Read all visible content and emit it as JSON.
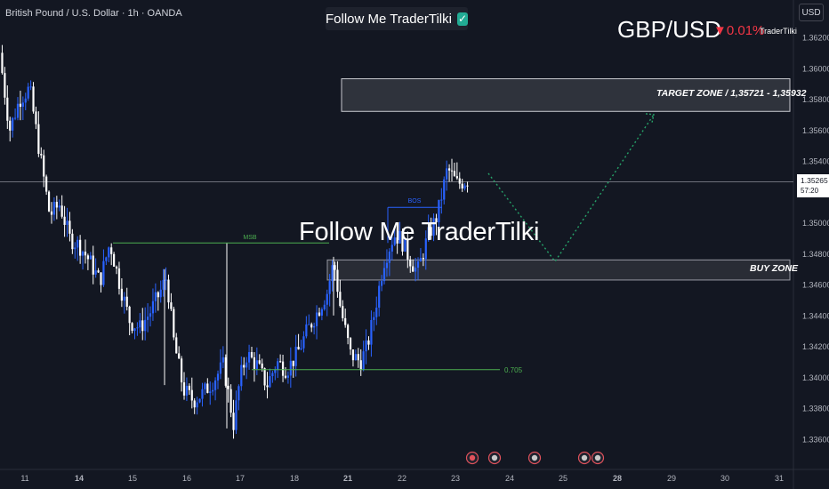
{
  "header": {
    "symbol_title": "British Pound / U.S. Dollar · 1h · OANDA",
    "banner_text": "Follow Me TraderTilki",
    "banner_check": "✓",
    "pair": "GBP/USD",
    "change": "▼0.01%",
    "brand": "TraderTilki",
    "currency": "USD"
  },
  "watermark": "Follow Me TraderTilki",
  "current_price": {
    "value": "1.35265",
    "countdown": "57:20"
  },
  "annotations": {
    "target_zone_label": "TARGET ZONE / 1,35721 - 1,35932",
    "buy_zone_label": "BUY ZONE",
    "msb": "MSB",
    "bos": "BOS",
    "fib": "0.705"
  },
  "colors": {
    "background": "#131722",
    "candle_up": "#2962ff",
    "candle_down": "#ffffff",
    "level_line": "#4caf50",
    "projection": "#26a269",
    "bos_line": "#2962ff"
  },
  "chart_data": {
    "type": "candlestick",
    "x_ticks": [
      "11",
      "14",
      "15",
      "16",
      "17",
      "18",
      "21",
      "22",
      "23",
      "24",
      "25",
      "28",
      "29",
      "30",
      "31"
    ],
    "y_ticks": [
      "1.36200",
      "1.36000",
      "1.35800",
      "1.35600",
      "1.35400",
      "1.35200",
      "1.35000",
      "1.34800",
      "1.34600",
      "1.34400",
      "1.34200",
      "1.34000",
      "1.33800",
      "1.33600"
    ],
    "y_range": [
      1.335,
      1.363
    ],
    "current_price": 1.35265,
    "zones": [
      {
        "label": "TARGET ZONE / 1,35721 - 1,35932",
        "low": 1.35721,
        "high": 1.35932
      },
      {
        "label": "BUY ZONE",
        "low": 1.3463,
        "high": 1.3476
      }
    ],
    "levels": [
      {
        "label": "MSB",
        "price": 1.3487
      },
      {
        "label": "BOS",
        "price": 1.351
      },
      {
        "label": "0.705",
        "price": 1.3405
      }
    ],
    "projection": [
      {
        "day": "23",
        "price": 1.3532
      },
      {
        "day": "25",
        "price": 1.3475
      },
      {
        "day": "28",
        "price": 1.357
      }
    ],
    "path": [
      [
        11,
        1.361
      ],
      [
        11.3,
        1.356
      ],
      [
        11.6,
        1.358
      ],
      [
        11.9,
        1.3587
      ],
      [
        12.2,
        1.3545
      ],
      [
        12.5,
        1.3505
      ],
      [
        12.8,
        1.3512
      ],
      [
        13.1,
        1.349
      ],
      [
        13.4,
        1.3485
      ],
      [
        13.7,
        1.3475
      ],
      [
        14,
        1.3462
      ],
      [
        14.3,
        1.3487
      ],
      [
        14.6,
        1.346
      ],
      [
        14.9,
        1.3436
      ],
      [
        15.2,
        1.3432
      ],
      [
        15.5,
        1.3442
      ],
      [
        15.8,
        1.3455
      ],
      [
        16.0,
        1.3465
      ],
      [
        16.2,
        1.3425
      ],
      [
        16.5,
        1.3392
      ],
      [
        16.8,
        1.3385
      ],
      [
        17.1,
        1.339
      ],
      [
        17.4,
        1.3398
      ],
      [
        17.7,
        1.3408
      ],
      [
        18.0,
        1.337
      ],
      [
        18.2,
        1.34
      ],
      [
        18.4,
        1.3415
      ],
      [
        18.7,
        1.3408
      ],
      [
        19.0,
        1.3395
      ],
      [
        19.3,
        1.341
      ],
      [
        19.6,
        1.3405
      ],
      [
        19.9,
        1.3415
      ],
      [
        20.2,
        1.343
      ],
      [
        20.5,
        1.3442
      ],
      [
        20.8,
        1.3455
      ],
      [
        21.0,
        1.3475
      ],
      [
        21.2,
        1.3445
      ],
      [
        21.5,
        1.3415
      ],
      [
        21.8,
        1.341
      ],
      [
        22.0,
        1.342
      ],
      [
        22.2,
        1.344
      ],
      [
        22.5,
        1.3475
      ],
      [
        22.8,
        1.3492
      ],
      [
        23.0,
        1.349
      ],
      [
        23.2,
        1.348
      ],
      [
        23.5,
        1.3468
      ],
      [
        23.8,
        1.349
      ],
      [
        24.1,
        1.3505
      ],
      [
        24.4,
        1.3535
      ],
      [
        24.7,
        1.3525
      ],
      [
        25.0,
        1.3528
      ]
    ]
  }
}
